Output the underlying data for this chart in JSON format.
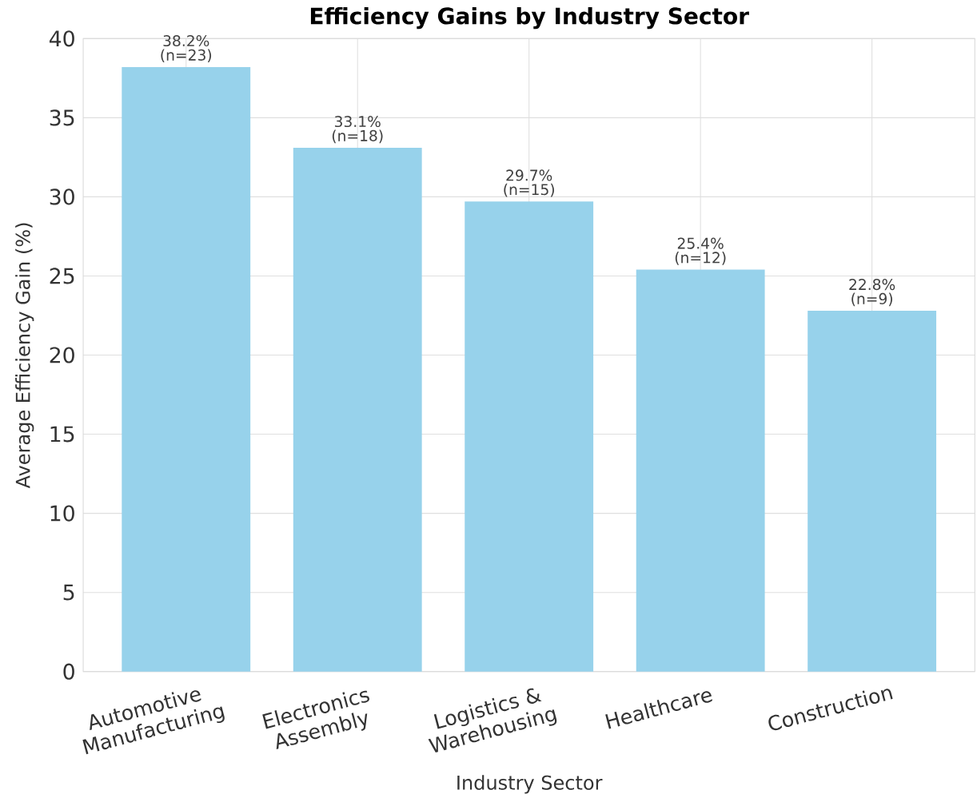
{
  "chart_data": {
    "type": "bar",
    "title": "Efficiency Gains by Industry Sector",
    "xlabel": "Industry Sector",
    "ylabel": "Average Efficiency Gain (%)",
    "categories": [
      "Automotive Manufacturing",
      "Electronics Assembly",
      "Logistics & Warehousing",
      "Healthcare",
      "Construction"
    ],
    "values": [
      38.2,
      33.1,
      29.7,
      25.4,
      22.8
    ],
    "color": "#97d2eb",
    "value_labels": [
      "38.2%",
      "33.1%",
      "29.7%",
      "25.4%",
      "22.8%"
    ],
    "annotations": [
      {
        "text": "(n=23)",
        "x": "Automotive Manufacturing",
        "y": 38.2
      },
      {
        "text": "(n=18)",
        "x": "Electronics Assembly",
        "y": 33.1
      },
      {
        "text": "(n=15)",
        "x": "Logistics & Warehousing",
        "y": 29.7
      },
      {
        "text": "(n=12)",
        "x": "Healthcare",
        "y": 25.4
      },
      {
        "text": "(n=9)",
        "x": "Construction",
        "y": 22.8
      }
    ],
    "ylim": [
      0,
      40
    ],
    "yticks": [
      0,
      5,
      10,
      15,
      20,
      25,
      30,
      35,
      40
    ],
    "grid": true
  }
}
